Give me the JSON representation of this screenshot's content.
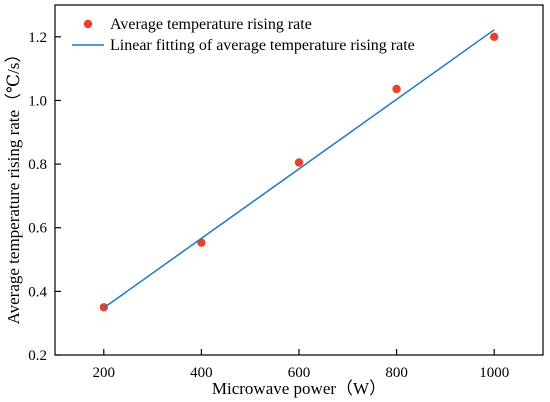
{
  "chart_data": {
    "type": "scatter",
    "xlabel": "Microwave power（W）",
    "ylabel": "Average temperature rising rate（℃/s）",
    "xlim": [
      100,
      1100
    ],
    "ylim": [
      0.2,
      1.3
    ],
    "x_ticks": [
      200,
      400,
      600,
      800,
      1000
    ],
    "y_ticks": [
      0.2,
      0.4,
      0.6,
      0.8,
      1.0,
      1.2
    ],
    "x_tick_labels": [
      "200",
      "400",
      "600",
      "800",
      "1000"
    ],
    "y_tick_labels": [
      "0.2",
      "0.4",
      "0.6",
      "0.8",
      "1.0",
      "1.2"
    ],
    "grid": false,
    "legend_position": "top-left",
    "series": [
      {
        "name": "Average temperature rising  rate",
        "type": "scatter",
        "color": "#e8412c",
        "x": [
          200,
          400,
          600,
          800,
          1000
        ],
        "y": [
          0.35,
          0.553,
          0.805,
          1.036,
          1.2
        ]
      },
      {
        "name": "Linear fitting of average temperature rising  rate",
        "type": "line",
        "color": "#1f77c4",
        "x": [
          200,
          1000
        ],
        "y": [
          0.348,
          1.222
        ]
      }
    ]
  }
}
